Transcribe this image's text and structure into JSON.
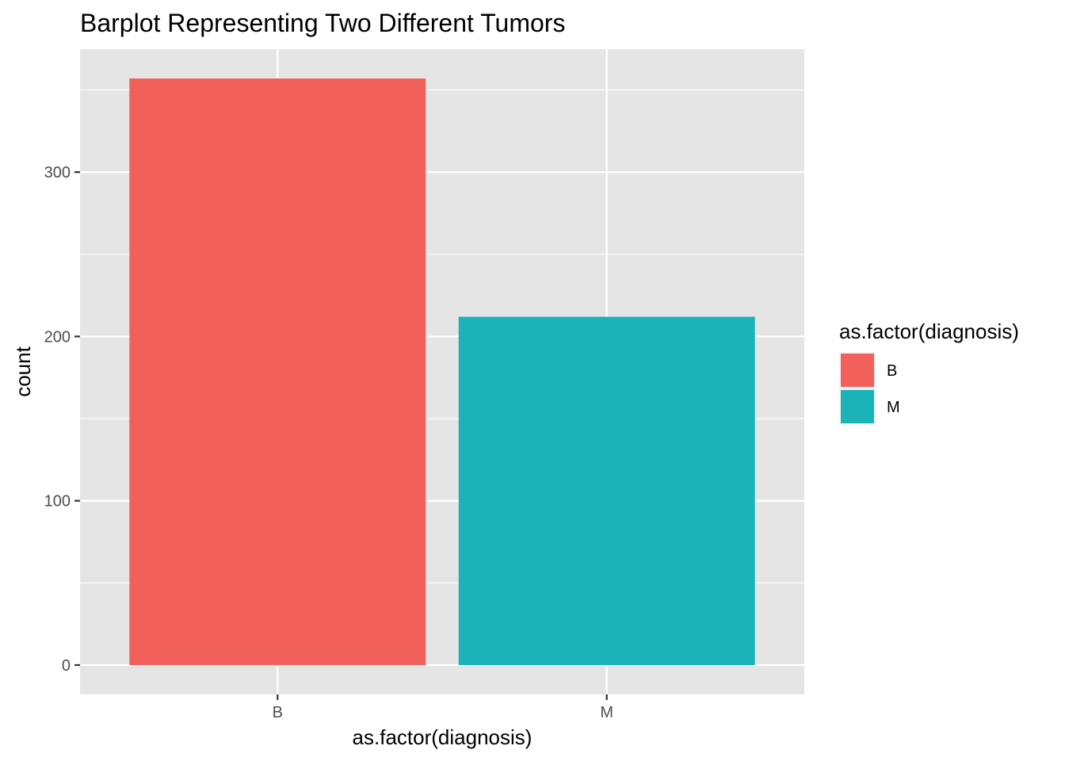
{
  "chart_data": {
    "type": "bar",
    "title": "Barplot Representing Two Different Tumors",
    "xlabel": "as.factor(diagnosis)",
    "ylabel": "count",
    "categories": [
      "B",
      "M"
    ],
    "values": [
      357,
      212
    ],
    "ylim": [
      -17.85,
      374.85
    ],
    "yticks": [
      0,
      100,
      200,
      300
    ],
    "ytick_labels": [
      "0",
      "100",
      "200",
      "300"
    ],
    "grid": true,
    "colors": [
      "#F8766D",
      "#00BFC4"
    ],
    "bar_colors": [
      "#F2605B",
      "#1AB3B8"
    ],
    "panel_background": "#E5E5E5",
    "legend": {
      "title": "as.factor(diagnosis)",
      "position": "right",
      "entries": [
        "B",
        "M"
      ]
    }
  }
}
